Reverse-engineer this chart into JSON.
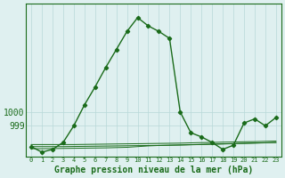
{
  "xlabel": "Graphe pression niveau de la mer (hPa)",
  "hours": [
    0,
    1,
    2,
    3,
    4,
    5,
    6,
    7,
    8,
    9,
    10,
    11,
    12,
    13,
    14,
    15,
    16,
    17,
    18,
    19,
    20,
    21,
    22,
    23
  ],
  "pressure_main": [
    997.5,
    997.1,
    997.3,
    997.8,
    999.0,
    1000.5,
    1001.8,
    1003.2,
    1004.5,
    1005.8,
    1006.8,
    1006.2,
    1005.8,
    1005.3,
    1000.0,
    998.5,
    998.2,
    997.8,
    997.3,
    997.6,
    999.2,
    999.5,
    999.0,
    999.6
  ],
  "pressure_line1": [
    997.35,
    997.35,
    997.36,
    997.37,
    997.38,
    997.39,
    997.4,
    997.41,
    997.43,
    997.45,
    997.5,
    997.55,
    997.58,
    997.6,
    997.62,
    997.64,
    997.66,
    997.68,
    997.7,
    997.72,
    997.74,
    997.76,
    997.78,
    997.8
  ],
  "pressure_line2": [
    997.5,
    997.5,
    997.5,
    997.5,
    997.51,
    997.52,
    997.53,
    997.54,
    997.55,
    997.56,
    997.57,
    997.58,
    997.59,
    997.6,
    997.61,
    997.63,
    997.65,
    997.67,
    997.69,
    997.71,
    997.73,
    997.75,
    997.77,
    997.79
  ],
  "pressure_line3": [
    997.65,
    997.65,
    997.65,
    997.65,
    997.65,
    997.66,
    997.67,
    997.68,
    997.69,
    997.7,
    997.71,
    997.72,
    997.73,
    997.74,
    997.75,
    997.77,
    997.79,
    997.8,
    997.82,
    997.83,
    997.85,
    997.86,
    997.88,
    997.9
  ],
  "curve_color": "#1a6b1a",
  "bg_color": "#dff0f0",
  "grid_color": "#b8d8d8",
  "text_color": "#1a6b1a",
  "ylim_min": 996.8,
  "ylim_max": 1007.8,
  "yticks": [
    999,
    1000
  ],
  "xticks": [
    0,
    1,
    2,
    3,
    4,
    5,
    6,
    7,
    8,
    9,
    10,
    11,
    12,
    13,
    14,
    15,
    16,
    17,
    18,
    19,
    20,
    21,
    22,
    23
  ]
}
